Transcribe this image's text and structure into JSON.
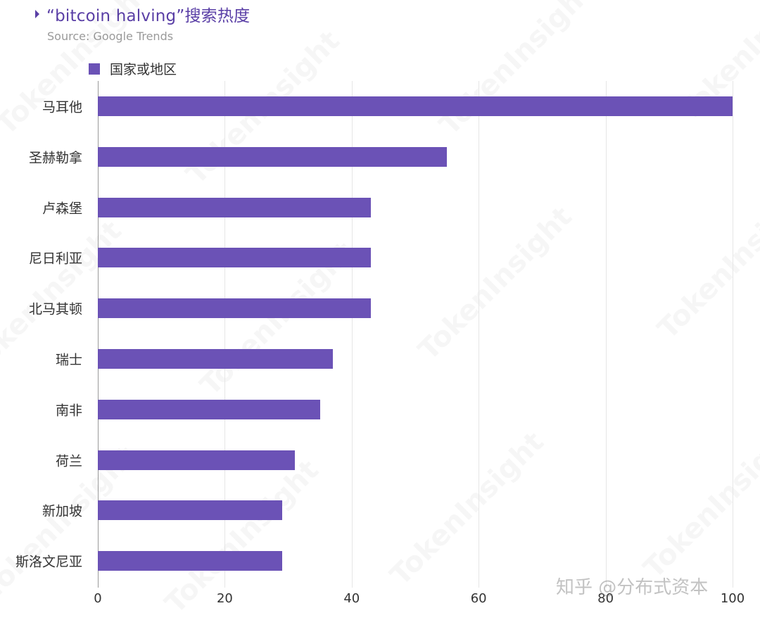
{
  "header": {
    "title": "“bitcoin halving”搜索热度",
    "subtitle": "Source: Google Trends"
  },
  "legend": {
    "label": "国家或地区",
    "color": "#6b52b6"
  },
  "watermark": {
    "text": "TokenInsight",
    "credit": "知乎 @分布式资本"
  },
  "chart_data": {
    "type": "bar",
    "orientation": "horizontal",
    "title": "“bitcoin halving”搜索热度",
    "subtitle": "Source: Google Trends",
    "xlabel": "",
    "ylabel": "",
    "xlim": [
      0,
      100
    ],
    "x_ticks": [
      0,
      20,
      40,
      60,
      80,
      100
    ],
    "grid": true,
    "legend_position": "top-left",
    "categories": [
      "马耳他",
      "圣赫勒拿",
      "卢森堡",
      "尼日利亚",
      "北马其顿",
      "瑞士",
      "南非",
      "荷兰",
      "新加坡",
      "斯洛文尼亚"
    ],
    "series": [
      {
        "name": "国家或地区",
        "color": "#6b52b6",
        "values": [
          100,
          55,
          43,
          43,
          43,
          37,
          35,
          31,
          29,
          29
        ]
      }
    ]
  }
}
